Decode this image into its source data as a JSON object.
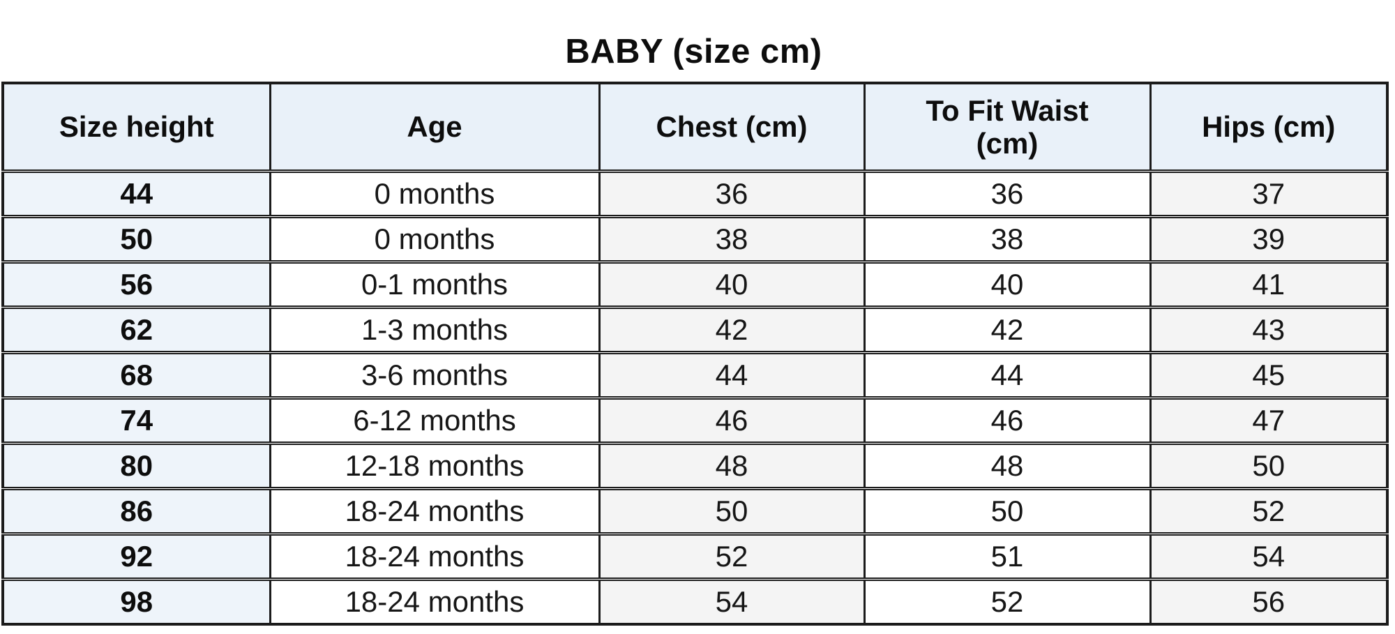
{
  "chart_data": {
    "type": "table",
    "title": "BABY (size cm)",
    "columns": [
      "Size height",
      "Age",
      "Chest (cm)",
      "To Fit Waist\n(cm)",
      "Hips (cm)"
    ],
    "rows": [
      [
        "44",
        "0 months",
        "36",
        "36",
        "37"
      ],
      [
        "50",
        "0 months",
        "38",
        "38",
        "39"
      ],
      [
        "56",
        "0-1 months",
        "40",
        "40",
        "41"
      ],
      [
        "62",
        "1-3 months",
        "42",
        "42",
        "43"
      ],
      [
        "68",
        "3-6 months",
        "44",
        "44",
        "45"
      ],
      [
        "74",
        "6-12 months",
        "46",
        "46",
        "47"
      ],
      [
        "80",
        "12-18 months",
        "48",
        "48",
        "50"
      ],
      [
        "86",
        "18-24 months",
        "50",
        "50",
        "52"
      ],
      [
        "92",
        "18-24 months",
        "52",
        "51",
        "54"
      ],
      [
        "98",
        "18-24 months",
        "54",
        "52",
        "56"
      ]
    ],
    "layout": {
      "legend": "none",
      "grid": "full-borders"
    }
  },
  "colors": {
    "header_bg": "#e9f1f9",
    "first_col_bg": "#eef4fa",
    "shaded_col_bg": "#f4f4f4",
    "plain_col_bg": "#ffffff",
    "border": "#1b1b1b",
    "text": "#141414"
  }
}
